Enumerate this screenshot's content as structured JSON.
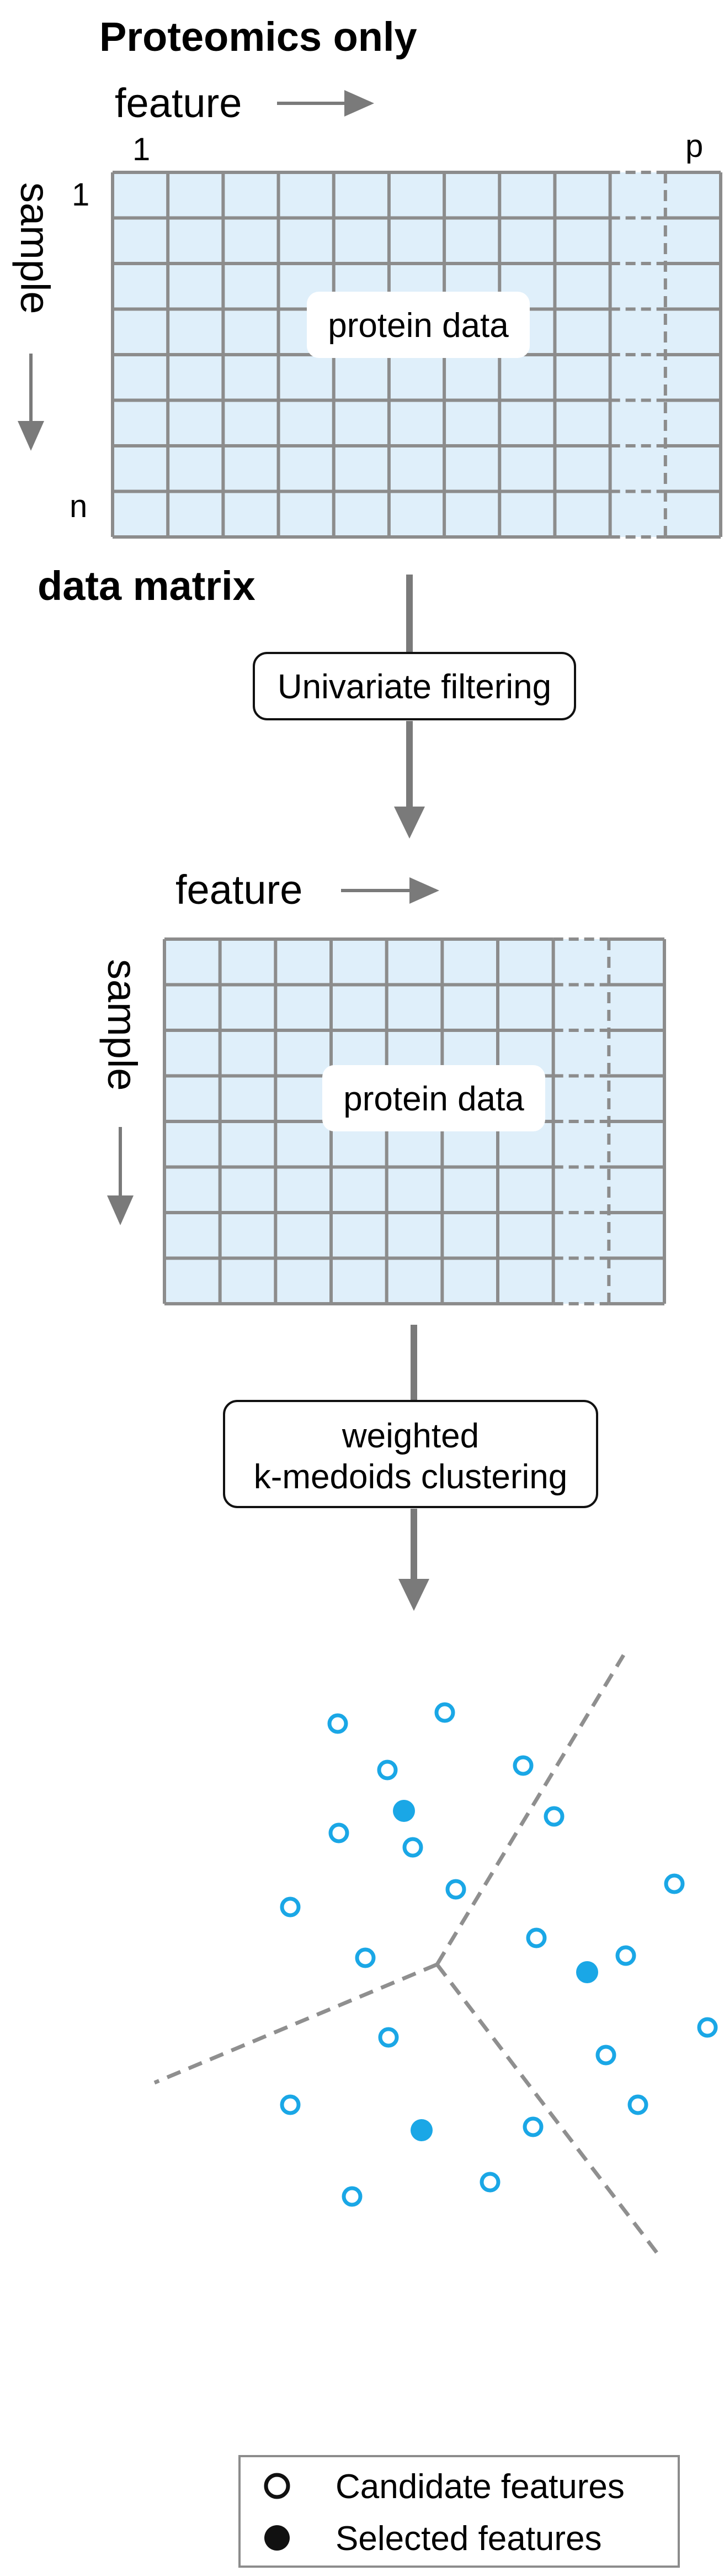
{
  "title": "Proteomics only",
  "matrix1": {
    "feature_label": "feature",
    "sample_label": "sample",
    "first_col": "1",
    "last_col": "p",
    "first_row": "1",
    "last_row": "n",
    "badge": "protein data",
    "caption": "data matrix"
  },
  "step1": {
    "label": "Univariate filtering"
  },
  "matrix2": {
    "feature_label": "feature",
    "sample_label": "sample",
    "badge": "protein data"
  },
  "step2": {
    "line1": "weighted",
    "line2": "k-medoids clustering"
  },
  "legend": {
    "candidate": "Candidate features",
    "selected": "Selected features"
  },
  "colors": {
    "cell_fill": "#dfeffa",
    "grid": "#8c8c8c",
    "arrow": "#7a7a7a",
    "point": "#1aa7e6",
    "boundary": "#8f8f8f"
  }
}
